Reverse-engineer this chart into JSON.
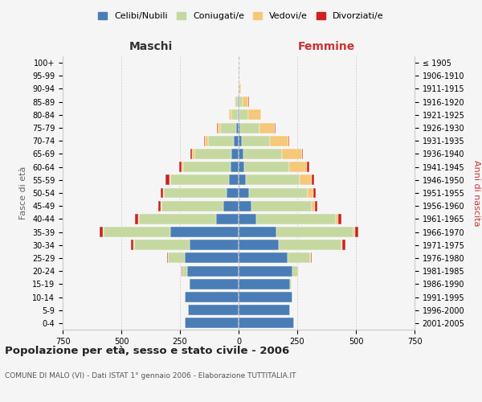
{
  "age_groups": [
    "0-4",
    "5-9",
    "10-14",
    "15-19",
    "20-24",
    "25-29",
    "30-34",
    "35-39",
    "40-44",
    "45-49",
    "50-54",
    "55-59",
    "60-64",
    "65-69",
    "70-74",
    "75-79",
    "80-84",
    "85-89",
    "90-94",
    "95-99",
    "100+"
  ],
  "birth_years": [
    "2001-2005",
    "1996-2000",
    "1991-1995",
    "1986-1990",
    "1981-1985",
    "1976-1980",
    "1971-1975",
    "1966-1970",
    "1961-1965",
    "1956-1960",
    "1951-1955",
    "1946-1950",
    "1941-1945",
    "1936-1940",
    "1931-1935",
    "1926-1930",
    "1921-1925",
    "1916-1920",
    "1911-1915",
    "1906-1910",
    "≤ 1905"
  ],
  "maschi": {
    "celibi": [
      230,
      215,
      230,
      210,
      220,
      230,
      210,
      290,
      95,
      65,
      50,
      40,
      35,
      30,
      20,
      10,
      5,
      2,
      0,
      0,
      0
    ],
    "coniugati": [
      0,
      0,
      0,
      3,
      20,
      70,
      235,
      285,
      330,
      265,
      270,
      250,
      200,
      160,
      110,
      70,
      25,
      10,
      3,
      1,
      0
    ],
    "vedovi": [
      0,
      0,
      0,
      0,
      1,
      3,
      3,
      3,
      3,
      3,
      3,
      5,
      8,
      10,
      15,
      10,
      10,
      5,
      1,
      0,
      0
    ],
    "divorziati": [
      0,
      0,
      0,
      0,
      1,
      3,
      10,
      15,
      15,
      8,
      10,
      15,
      10,
      5,
      3,
      2,
      1,
      0,
      0,
      0,
      0
    ]
  },
  "femmine": {
    "nubili": [
      235,
      220,
      230,
      220,
      230,
      210,
      170,
      160,
      75,
      55,
      45,
      30,
      25,
      20,
      12,
      8,
      5,
      2,
      1,
      0,
      0
    ],
    "coniugate": [
      0,
      0,
      0,
      5,
      25,
      95,
      270,
      330,
      340,
      255,
      250,
      230,
      190,
      165,
      120,
      80,
      35,
      15,
      3,
      1,
      0
    ],
    "vedove": [
      0,
      0,
      0,
      0,
      1,
      2,
      3,
      5,
      10,
      15,
      25,
      50,
      75,
      85,
      80,
      65,
      55,
      25,
      5,
      1,
      0
    ],
    "divorziate": [
      0,
      0,
      0,
      0,
      1,
      3,
      12,
      15,
      15,
      10,
      10,
      12,
      10,
      5,
      3,
      3,
      2,
      1,
      0,
      0,
      0
    ]
  },
  "colors": {
    "celibi": "#4a7db5",
    "coniugati": "#c5d8a0",
    "vedovi": "#f5c87a",
    "divorziati": "#cc2222"
  },
  "title": "Popolazione per età, sesso e stato civile - 2006",
  "subtitle": "COMUNE DI MALO (VI) - Dati ISTAT 1° gennaio 2006 - Elaborazione TUTTITALIA.IT",
  "ylabel_left": "Fasce di età",
  "ylabel_right": "Anni di nascita",
  "xlabel_maschi": "Maschi",
  "xlabel_femmine": "Femmine",
  "xlim": 750,
  "background_color": "#f5f5f5",
  "grid_color": "#cccccc"
}
